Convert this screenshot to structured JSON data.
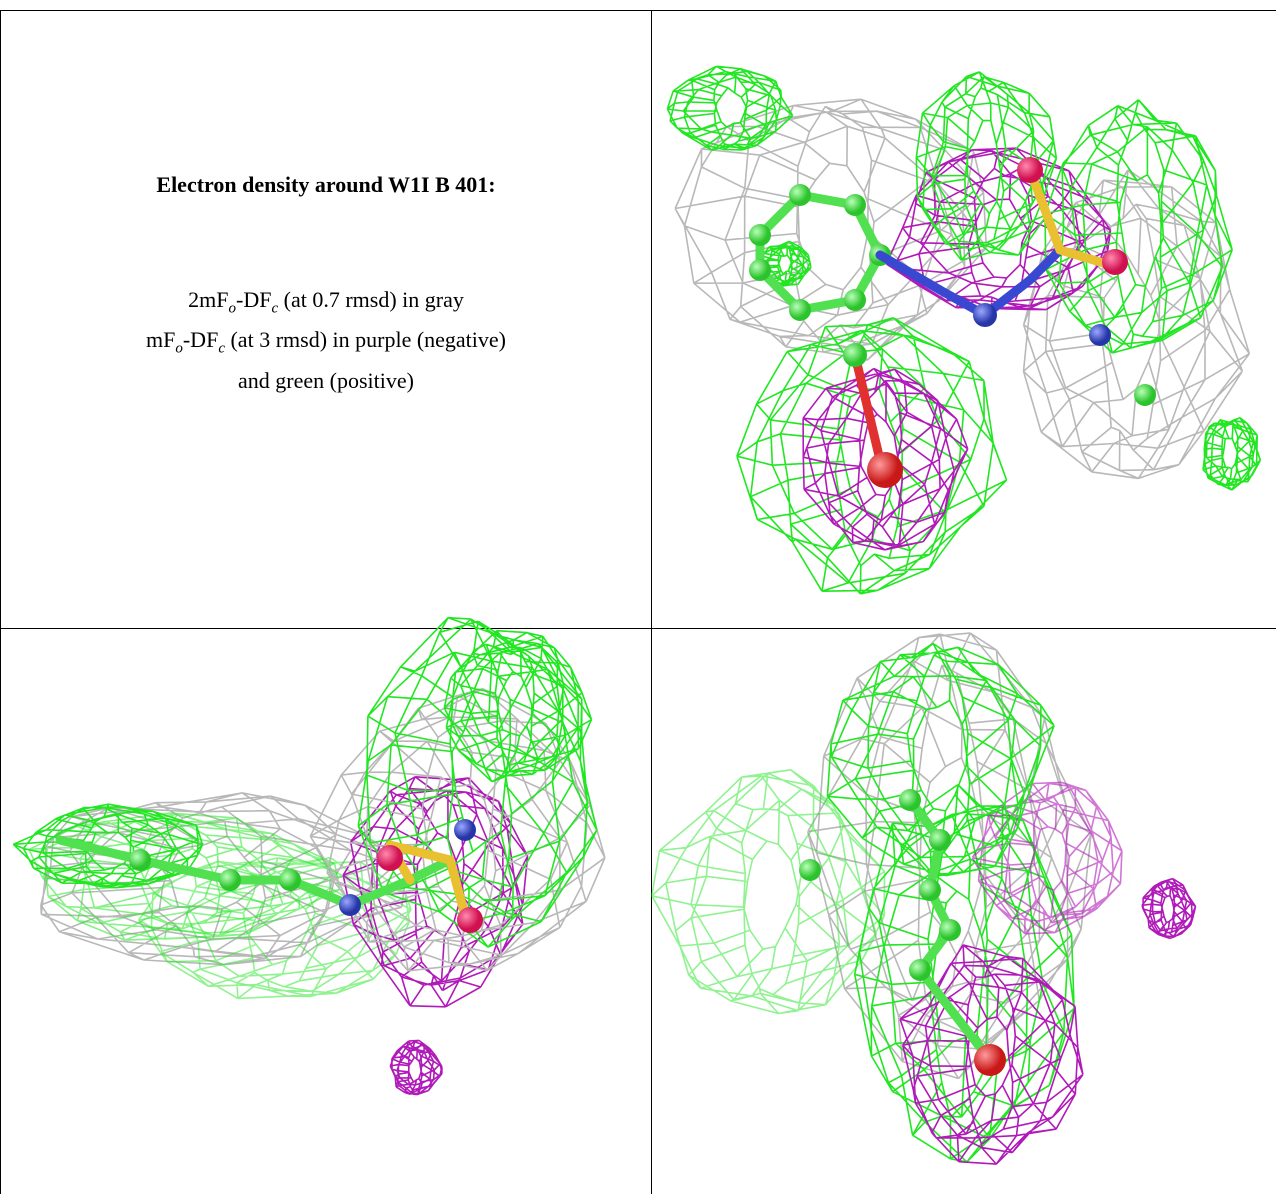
{
  "header": {
    "title": "Electron density around W1I B 401:"
  },
  "caption": {
    "lines": [
      [
        "2mF",
        "o",
        "-DF",
        "c",
        " (at 0.7 rmsd) in gray"
      ],
      [
        "mF",
        "o",
        "-DF",
        "c",
        " (at 3 rmsd) in purple (negative)"
      ],
      [
        "and green (positive)"
      ]
    ]
  }
}
